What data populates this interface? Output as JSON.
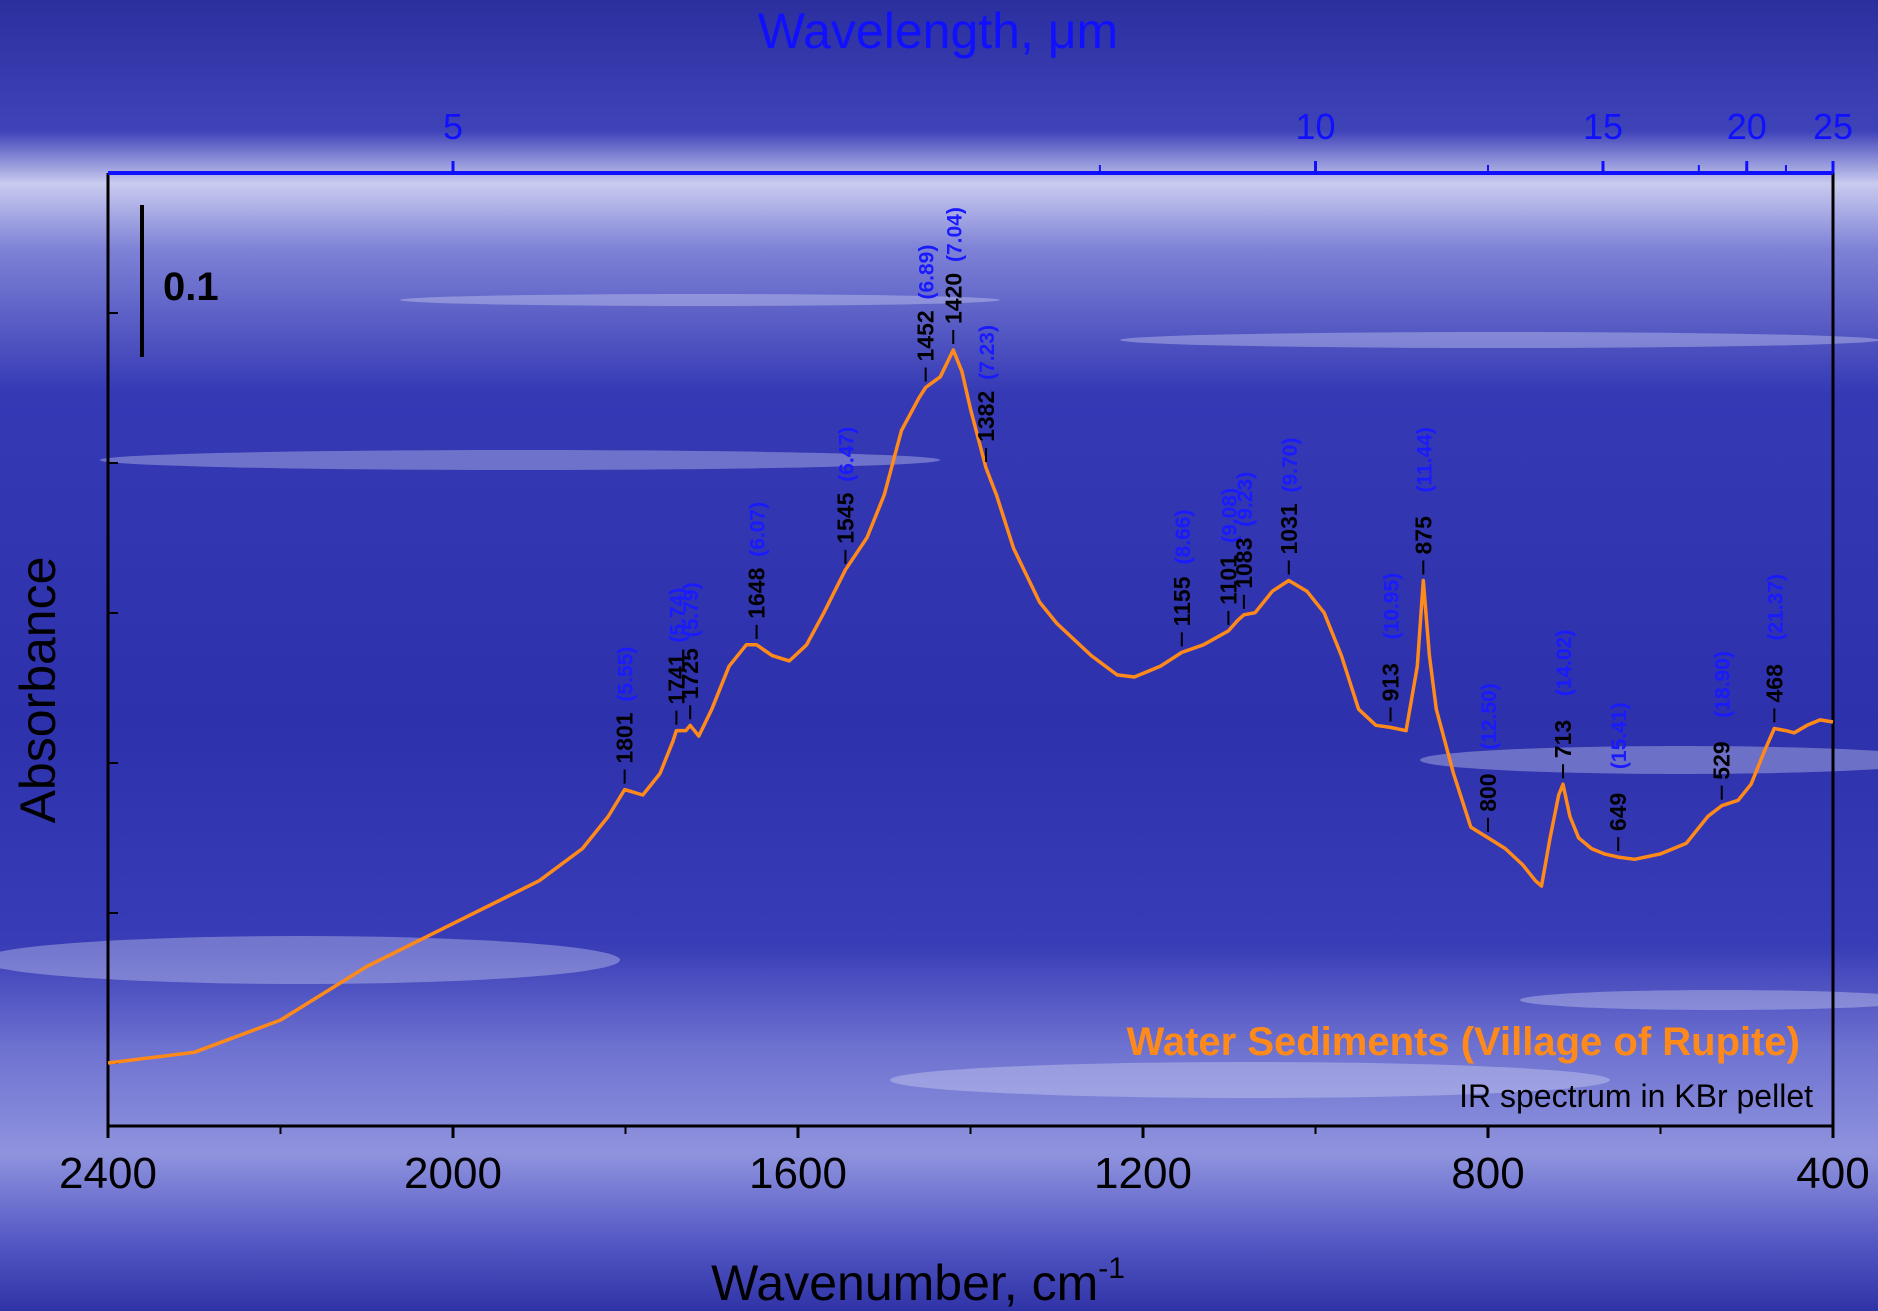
{
  "chart_data": {
    "type": "line",
    "title": "",
    "xlabel": "Wavenumber, cm",
    "xlabel_superscript": "-1",
    "x2label": "Wavelength, μm",
    "ylabel": "Absorbance",
    "xlim": [
      2400,
      400
    ],
    "x_reversed": true,
    "x_ticks": [
      2400,
      2000,
      1600,
      1200,
      800,
      400
    ],
    "x_minor_ticks": [
      2200,
      1800,
      1400,
      1000,
      600
    ],
    "x2_ticks": [
      5,
      10,
      15,
      20,
      25
    ],
    "x2_minor_ticks": [
      8,
      12.5,
      18,
      22
    ],
    "y_scale_label": "0.1",
    "grid": false,
    "line_color": "#ff8a1a",
    "legend": {
      "main": "Water Sediments (Village of Rupite)",
      "sub": "IR spectrum in KBr pellet",
      "placement": "bottom-right"
    },
    "series": [
      {
        "name": "Water Sediments (Village of Rupite)",
        "points": [
          [
            2400,
            0.09
          ],
          [
            2300,
            0.1
          ],
          [
            2200,
            0.13
          ],
          [
            2100,
            0.18
          ],
          [
            2000,
            0.22
          ],
          [
            1900,
            0.26
          ],
          [
            1850,
            0.29
          ],
          [
            1820,
            0.32
          ],
          [
            1801,
            0.345
          ],
          [
            1780,
            0.34
          ],
          [
            1760,
            0.36
          ],
          [
            1745,
            0.39
          ],
          [
            1741,
            0.4
          ],
          [
            1730,
            0.4
          ],
          [
            1725,
            0.405
          ],
          [
            1715,
            0.395
          ],
          [
            1700,
            0.42
          ],
          [
            1680,
            0.46
          ],
          [
            1660,
            0.48
          ],
          [
            1648,
            0.48
          ],
          [
            1630,
            0.47
          ],
          [
            1610,
            0.465
          ],
          [
            1590,
            0.48
          ],
          [
            1570,
            0.51
          ],
          [
            1545,
            0.55
          ],
          [
            1520,
            0.58
          ],
          [
            1500,
            0.62
          ],
          [
            1480,
            0.68
          ],
          [
            1460,
            0.71
          ],
          [
            1452,
            0.72
          ],
          [
            1435,
            0.73
          ],
          [
            1420,
            0.755
          ],
          [
            1410,
            0.735
          ],
          [
            1400,
            0.7
          ],
          [
            1382,
            0.645
          ],
          [
            1370,
            0.62
          ],
          [
            1350,
            0.57
          ],
          [
            1320,
            0.52
          ],
          [
            1300,
            0.5
          ],
          [
            1260,
            0.47
          ],
          [
            1230,
            0.452
          ],
          [
            1210,
            0.45
          ],
          [
            1180,
            0.46
          ],
          [
            1155,
            0.473
          ],
          [
            1130,
            0.48
          ],
          [
            1101,
            0.493
          ],
          [
            1090,
            0.503
          ],
          [
            1083,
            0.508
          ],
          [
            1070,
            0.51
          ],
          [
            1050,
            0.53
          ],
          [
            1031,
            0.54
          ],
          [
            1010,
            0.53
          ],
          [
            990,
            0.51
          ],
          [
            970,
            0.47
          ],
          [
            950,
            0.42
          ],
          [
            930,
            0.405
          ],
          [
            913,
            0.403
          ],
          [
            895,
            0.4
          ],
          [
            882,
            0.46
          ],
          [
            875,
            0.54
          ],
          [
            868,
            0.47
          ],
          [
            860,
            0.42
          ],
          [
            840,
            0.36
          ],
          [
            820,
            0.31
          ],
          [
            810,
            0.305
          ],
          [
            800,
            0.3
          ],
          [
            780,
            0.29
          ],
          [
            760,
            0.275
          ],
          [
            745,
            0.26
          ],
          [
            738,
            0.255
          ],
          [
            728,
            0.3
          ],
          [
            718,
            0.34
          ],
          [
            713,
            0.35
          ],
          [
            705,
            0.32
          ],
          [
            695,
            0.3
          ],
          [
            680,
            0.29
          ],
          [
            665,
            0.285
          ],
          [
            649,
            0.282
          ],
          [
            630,
            0.28
          ],
          [
            600,
            0.285
          ],
          [
            570,
            0.295
          ],
          [
            545,
            0.32
          ],
          [
            529,
            0.33
          ],
          [
            510,
            0.335
          ],
          [
            495,
            0.35
          ],
          [
            480,
            0.38
          ],
          [
            468,
            0.402
          ],
          [
            455,
            0.4
          ],
          [
            445,
            0.398
          ],
          [
            430,
            0.405
          ],
          [
            415,
            0.41
          ],
          [
            400,
            0.408
          ]
        ]
      }
    ],
    "peak_labels": [
      {
        "wn": 1801,
        "label": "1801",
        "wl": "(5.55)"
      },
      {
        "wn": 1741,
        "label": "1741",
        "wl": "(5.74)"
      },
      {
        "wn": 1725,
        "label": "1725",
        "wl": "(5.79)"
      },
      {
        "wn": 1648,
        "label": "1648",
        "wl": "(6.07)"
      },
      {
        "wn": 1545,
        "label": "1545",
        "wl": "(6.47)"
      },
      {
        "wn": 1452,
        "label": "1452",
        "wl": "(6.89)"
      },
      {
        "wn": 1420,
        "label": "1420",
        "wl": "(7.04)"
      },
      {
        "wn": 1382,
        "label": "1382",
        "wl": "(7.23)"
      },
      {
        "wn": 1155,
        "label": "1155",
        "wl": "(8.66)"
      },
      {
        "wn": 1101,
        "label": "1101",
        "wl": "(9.08)"
      },
      {
        "wn": 1083,
        "label": "1083",
        "wl": "(9.23)"
      },
      {
        "wn": 1031,
        "label": "1031",
        "wl": "(9.70)"
      },
      {
        "wn": 913,
        "label": "913",
        "wl": "(10.95)"
      },
      {
        "wn": 875,
        "label": "875",
        "wl": "(11.44)"
      },
      {
        "wn": 800,
        "label": "800",
        "wl": "(12.50)"
      },
      {
        "wn": 713,
        "label": "713",
        "wl": "(14.02)"
      },
      {
        "wn": 649,
        "label": "649",
        "wl": "(15.41)"
      },
      {
        "wn": 529,
        "label": "529",
        "wl": "(18.90)"
      },
      {
        "wn": 468,
        "label": "468",
        "wl": "(21.37)"
      }
    ]
  }
}
